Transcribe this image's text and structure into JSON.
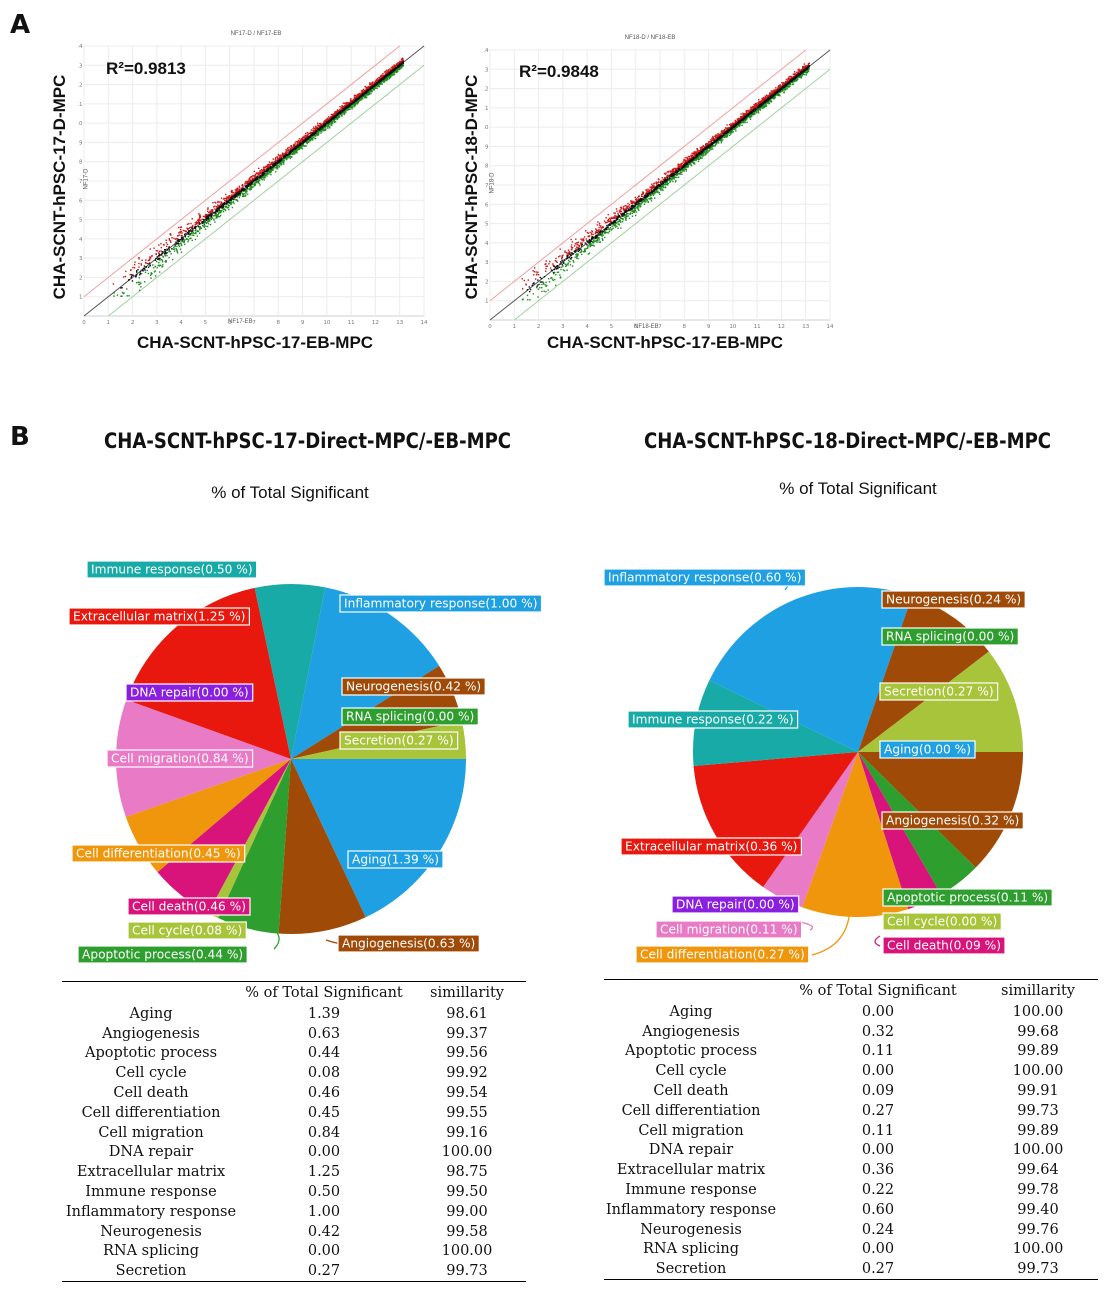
{
  "panel_a": {
    "letter": "A",
    "plots": [
      {
        "top_title": "NF17-D / NF17-EB",
        "r2": "R²=0.9813",
        "ylabel": "CHA-SCNT-hPSC-17-D-MPC",
        "xlabel": "CHA-SCNT-hPSC-17-EB-MPC",
        "small_x": "NF17-EB",
        "small_y": "NF17-D",
        "seed": 17
      },
      {
        "top_title": "NF18-D / NF18-EB",
        "r2": "R²=0.9848",
        "ylabel": "CHA-SCNT-hPSC-18-D-MPC",
        "xlabel": "CHA-SCNT-hPSC-17-EB-MPC",
        "small_x": "NF18-EB",
        "small_y": "NF18-D",
        "seed": 18
      }
    ]
  },
  "panel_b": {
    "letter": "B",
    "left_title": "CHA-SCNT-hPSC-17-Direct-MPC/-EB-MPC",
    "right_title": "CHA-SCNT-hPSC-18-Direct-MPC/-EB-MPC",
    "subtitle": "% of Total Significant",
    "table_header": [
      "",
      "% of Total Significant",
      "simillarity"
    ]
  },
  "chart_data": [
    {
      "type": "scatter",
      "title": "NF17-D / NF17-EB",
      "xlabel": "CHA-SCNT-hPSC-17-EB-MPC",
      "ylabel": "CHA-SCNT-hPSC-17-D-MPC",
      "xlim": [
        0,
        14
      ],
      "ylim": [
        0,
        14
      ],
      "xticks": [
        0,
        1,
        2,
        3,
        4,
        5,
        6,
        7,
        8,
        9,
        10,
        11,
        12,
        13,
        14
      ],
      "yticks": [
        1,
        2,
        3,
        4,
        5,
        6,
        7,
        8,
        9,
        10,
        11,
        12,
        13,
        14
      ],
      "r_squared": 0.9813,
      "reference_lines": [
        {
          "name": "identity",
          "slope": 1,
          "offset": 0,
          "color": "#555555"
        },
        {
          "name": "upper fold line",
          "slope": 1,
          "offset": 1,
          "color": "#f0a0a0"
        },
        {
          "name": "lower fold line",
          "slope": 1,
          "offset": -1,
          "color": "#a0d0a0"
        }
      ],
      "series": [
        {
          "name": "up",
          "color": "#d01818"
        },
        {
          "name": "unchanged",
          "color": "#111111"
        },
        {
          "name": "down",
          "color": "#1f8f1f"
        }
      ]
    },
    {
      "type": "scatter",
      "title": "NF18-D / NF18-EB",
      "xlabel": "CHA-SCNT-hPSC-17-EB-MPC",
      "ylabel": "CHA-SCNT-hPSC-18-D-MPC",
      "xlim": [
        0,
        14
      ],
      "ylim": [
        0,
        14
      ],
      "xticks": [
        0,
        1,
        2,
        3,
        4,
        5,
        6,
        7,
        8,
        9,
        10,
        11,
        12,
        13,
        14
      ],
      "yticks": [
        1,
        2,
        3,
        4,
        5,
        6,
        7,
        8,
        9,
        10,
        11,
        12,
        13,
        14
      ],
      "r_squared": 0.9848,
      "reference_lines": [
        {
          "name": "identity",
          "slope": 1,
          "offset": 0,
          "color": "#555555"
        },
        {
          "name": "upper fold line",
          "slope": 1,
          "offset": 1,
          "color": "#f0a0a0"
        },
        {
          "name": "lower fold line",
          "slope": 1,
          "offset": -1,
          "color": "#a0d0a0"
        }
      ],
      "series": [
        {
          "name": "up",
          "color": "#d01818"
        },
        {
          "name": "unchanged",
          "color": "#111111"
        },
        {
          "name": "down",
          "color": "#1f8f1f"
        }
      ]
    },
    {
      "type": "pie",
      "title": "CHA-SCNT-hPSC-17-Direct-MPC/-EB-MPC",
      "subtitle": "% of Total Significant",
      "start_angle_deg": 0,
      "slices": [
        {
          "label": "Aging(1.39 %)",
          "category": "Aging",
          "value": 1.39,
          "similarity": 98.61,
          "color": "#1ea0e2",
          "label_bg": "#1ea0e2"
        },
        {
          "label": "Angiogenesis(0.63 %)",
          "category": "Angiogenesis",
          "value": 0.63,
          "similarity": 99.37,
          "color": "#a04a08",
          "label_bg": "#a04a08"
        },
        {
          "label": "Apoptotic process(0.44 %)",
          "category": "Apoptotic process",
          "value": 0.44,
          "similarity": 99.56,
          "color": "#2e9e2e",
          "label_bg": "#2e9e2e"
        },
        {
          "label": "Cell cycle(0.08 %)",
          "category": "Cell cycle",
          "value": 0.08,
          "similarity": 99.92,
          "color": "#a8c43a",
          "label_bg": "#a8c43a"
        },
        {
          "label": "Cell death(0.46 %)",
          "category": "Cell death",
          "value": 0.46,
          "similarity": 99.54,
          "color": "#d8137a",
          "label_bg": "#d8137a"
        },
        {
          "label": "Cell differentiation(0.45 %)",
          "category": "Cell differentiation",
          "value": 0.45,
          "similarity": 99.55,
          "color": "#f0960c",
          "label_bg": "#f0960c"
        },
        {
          "label": "Cell migration(0.84 %)",
          "category": "Cell migration",
          "value": 0.84,
          "similarity": 99.16,
          "color": "#e87ac6",
          "label_bg": "#e87ac6"
        },
        {
          "label": "DNA repair(0.00 %)",
          "category": "DNA repair",
          "value": 0.0,
          "similarity": 100.0,
          "color": "#8a1fe0",
          "label_bg": "#8a1fe0"
        },
        {
          "label": "Extracellular matrix(1.25 %)",
          "category": "Extracellular matrix",
          "value": 1.25,
          "similarity": 98.75,
          "color": "#e8180e",
          "label_bg": "#e8180e"
        },
        {
          "label": "Immune response(0.50 %)",
          "category": "Immune response",
          "value": 0.5,
          "similarity": 99.5,
          "color": "#18aaa6",
          "label_bg": "#18aaa6"
        },
        {
          "label": "Inflammatory response(1.00 %)",
          "category": "Inflammatory response",
          "value": 1.0,
          "similarity": 99.0,
          "color": "#1ea0e2",
          "label_bg": "#1ea0e2"
        },
        {
          "label": "Neurogenesis(0.42 %)",
          "category": "Neurogenesis",
          "value": 0.42,
          "similarity": 99.58,
          "color": "#a04a08",
          "label_bg": "#a04a08"
        },
        {
          "label": "RNA splicing(0.00 %)",
          "category": "RNA splicing",
          "value": 0.0,
          "similarity": 100.0,
          "color": "#2e9e2e",
          "label_bg": "#2e9e2e"
        },
        {
          "label": "Secretion(0.27 %)",
          "category": "Secretion",
          "value": 0.27,
          "similarity": 99.73,
          "color": "#a8c43a",
          "label_bg": "#a8c43a"
        }
      ]
    },
    {
      "type": "pie",
      "title": "CHA-SCNT-hPSC-18-Direct-MPC/-EB-MPC",
      "subtitle": "% of Total Significant",
      "start_angle_deg": 0,
      "slices": [
        {
          "label": "Aging(0.00 %)",
          "category": "Aging",
          "value": 0.0,
          "similarity": 100.0,
          "color": "#1ea0e2",
          "label_bg": "#1ea0e2"
        },
        {
          "label": "Angiogenesis(0.32 %)",
          "category": "Angiogenesis",
          "value": 0.32,
          "similarity": 99.68,
          "color": "#a04a08",
          "label_bg": "#a04a08"
        },
        {
          "label": "Apoptotic process(0.11 %)",
          "category": "Apoptotic process",
          "value": 0.11,
          "similarity": 99.89,
          "color": "#2e9e2e",
          "label_bg": "#2e9e2e"
        },
        {
          "label": "Cell cycle(0.00 %)",
          "category": "Cell cycle",
          "value": 0.0,
          "similarity": 100.0,
          "color": "#a8c43a",
          "label_bg": "#a8c43a"
        },
        {
          "label": "Cell death(0.09 %)",
          "category": "Cell death",
          "value": 0.09,
          "similarity": 99.91,
          "color": "#d8137a",
          "label_bg": "#d8137a"
        },
        {
          "label": "Cell differentiation(0.27 %)",
          "category": "Cell differentiation",
          "value": 0.27,
          "similarity": 99.73,
          "color": "#f0960c",
          "label_bg": "#f0960c"
        },
        {
          "label": "Cell migration(0.11 %)",
          "category": "Cell migration",
          "value": 0.11,
          "similarity": 99.89,
          "color": "#e87ac6",
          "label_bg": "#e87ac6"
        },
        {
          "label": "DNA repair(0.00 %)",
          "category": "DNA repair",
          "value": 0.0,
          "similarity": 100.0,
          "color": "#8a1fe0",
          "label_bg": "#8a1fe0"
        },
        {
          "label": "Extracellular matrix(0.36 %)",
          "category": "Extracellular matrix",
          "value": 0.36,
          "similarity": 99.64,
          "color": "#e8180e",
          "label_bg": "#e8180e"
        },
        {
          "label": "Immune response(0.22 %)",
          "category": "Immune response",
          "value": 0.22,
          "similarity": 99.78,
          "color": "#18aaa6",
          "label_bg": "#18aaa6"
        },
        {
          "label": "Inflammatory response(0.60 %)",
          "category": "Inflammatory response",
          "value": 0.6,
          "similarity": 99.4,
          "color": "#1ea0e2",
          "label_bg": "#1ea0e2"
        },
        {
          "label": "Neurogenesis(0.24 %)",
          "category": "Neurogenesis",
          "value": 0.24,
          "similarity": 99.76,
          "color": "#a04a08",
          "label_bg": "#a04a08"
        },
        {
          "label": "RNA splicing(0.00 %)",
          "category": "RNA splicing",
          "value": 0.0,
          "similarity": 100.0,
          "color": "#2e9e2e",
          "label_bg": "#2e9e2e"
        },
        {
          "label": "Secretion(0.27 %)",
          "category": "Secretion",
          "value": 0.27,
          "similarity": 99.73,
          "color": "#a8c43a",
          "label_bg": "#a8c43a"
        }
      ]
    }
  ]
}
